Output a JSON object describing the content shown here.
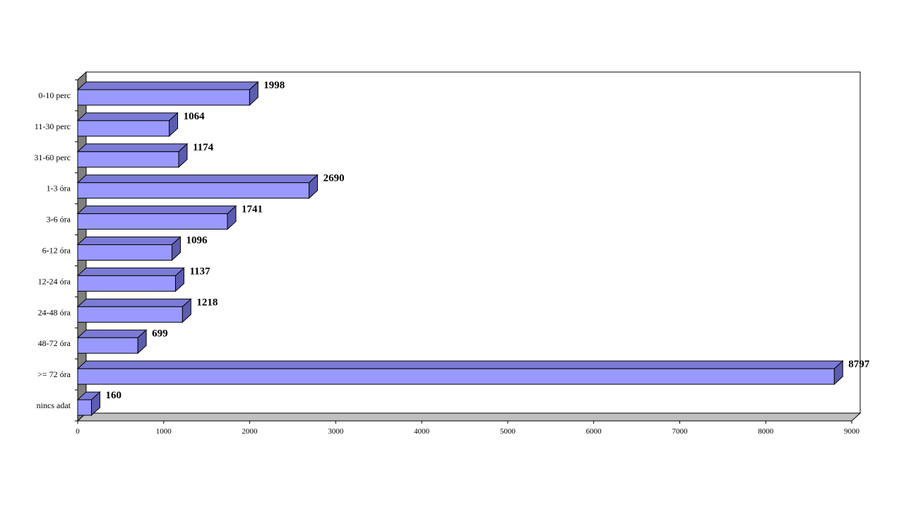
{
  "chart_data": {
    "type": "bar",
    "orientation": "horizontal",
    "style": "3d",
    "categories": [
      "0-10 perc",
      "11-30 perc",
      "31-60 perc",
      "1-3 óra",
      "3-6 óra",
      "6-12 óra",
      "12-24 óra",
      "24-48 óra",
      "48-72 óra",
      ">= 72 óra",
      "nincs adat"
    ],
    "values": [
      1998,
      1064,
      1174,
      2690,
      1741,
      1096,
      1137,
      1218,
      699,
      8797,
      160
    ],
    "data_labels": [
      "1998",
      "1064",
      "1174",
      "2690",
      "1741",
      "1096",
      "1137",
      "1218",
      "699",
      "8797",
      "160"
    ],
    "x_ticks": [
      "0",
      "1000",
      "2000",
      "3000",
      "4000",
      "5000",
      "6000",
      "7000",
      "8000",
      "9000"
    ],
    "xlim": [
      0,
      9000
    ],
    "grid": false,
    "legend": "none",
    "title": "",
    "xlabel": "",
    "ylabel": "",
    "colors": {
      "bar_front": "#9999ff",
      "bar_top": "#7b7bd6",
      "bar_side": "#5c5cb0",
      "wall_left": "#808080",
      "floor": "#c0c0c0",
      "outline": "#000000"
    }
  }
}
